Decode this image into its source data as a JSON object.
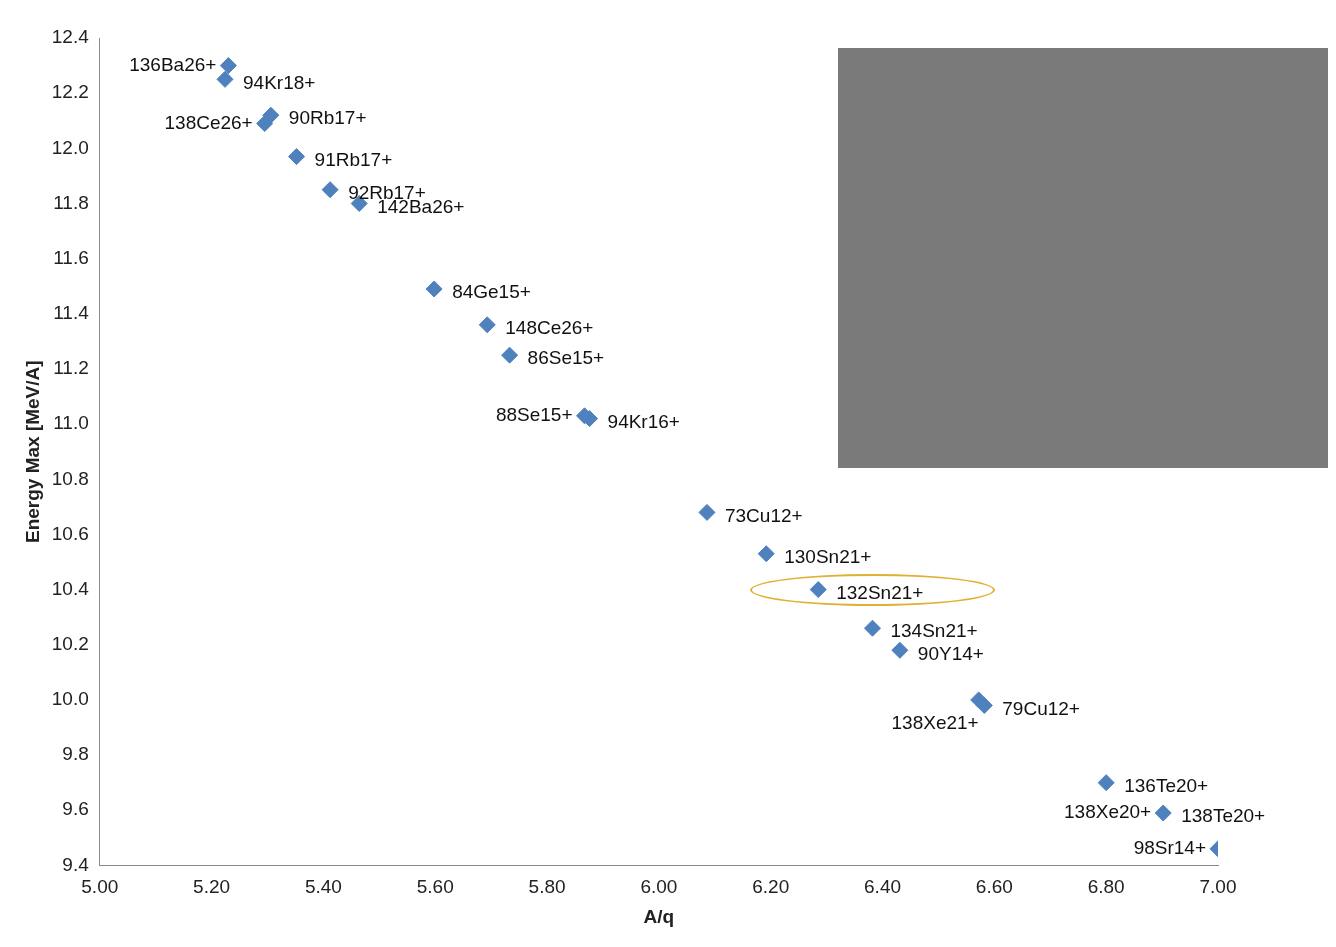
{
  "chart_data": {
    "type": "scatter",
    "xlabel": "A/q",
    "ylabel": "Energy Max [MeV/A]",
    "x": [
      5.23,
      5.224,
      5.295,
      5.306,
      5.352,
      5.412,
      5.464,
      5.598,
      5.693,
      5.733,
      5.867,
      5.876,
      6.086,
      6.192,
      6.285,
      6.382,
      6.431,
      6.572,
      6.582,
      6.8,
      6.902,
      7.0
    ],
    "values": [
      12.3,
      12.25,
      12.09,
      12.12,
      11.97,
      11.85,
      11.8,
      11.49,
      11.36,
      11.25,
      11.03,
      11.02,
      10.68,
      10.53,
      10.4,
      10.26,
      10.18,
      10.0,
      9.98,
      9.7,
      9.59,
      9.46
    ],
    "color": "#4f81bd",
    "marker": "diamond",
    "grid": false,
    "xlim": [
      5.0,
      7.0
    ],
    "xticks": [
      {
        "value": 5.0,
        "label": "5.00"
      },
      {
        "value": 5.2,
        "label": "5.20"
      },
      {
        "value": 5.4,
        "label": "5.40"
      },
      {
        "value": 5.6,
        "label": "5.60"
      },
      {
        "value": 5.8,
        "label": "5.80"
      },
      {
        "value": 6.0,
        "label": "6.00"
      },
      {
        "value": 6.2,
        "label": "6.20"
      },
      {
        "value": 6.4,
        "label": "6.40"
      },
      {
        "value": 6.6,
        "label": "6.60"
      },
      {
        "value": 6.8,
        "label": "6.80"
      },
      {
        "value": 7.0,
        "label": "7.00"
      }
    ],
    "ylim": [
      9.4,
      12.4
    ],
    "yticks": [
      {
        "value": 9.4,
        "label": "9.4"
      },
      {
        "value": 9.6,
        "label": "9.6"
      },
      {
        "value": 9.8,
        "label": "9.8"
      },
      {
        "value": 10.0,
        "label": "10.0"
      },
      {
        "value": 10.2,
        "label": "10.2"
      },
      {
        "value": 10.4,
        "label": "10.4"
      },
      {
        "value": 10.6,
        "label": "10.6"
      },
      {
        "value": 10.8,
        "label": "10.8"
      },
      {
        "value": 11.0,
        "label": "11.0"
      },
      {
        "value": 11.2,
        "label": "11.2"
      },
      {
        "value": 11.4,
        "label": "11.4"
      },
      {
        "value": 11.6,
        "label": "11.6"
      },
      {
        "value": 11.8,
        "label": "11.8"
      },
      {
        "value": 12.0,
        "label": "12.0"
      },
      {
        "value": 12.2,
        "label": "12.2"
      },
      {
        "value": 12.4,
        "label": "12.4"
      }
    ],
    "annotations": [
      {
        "text": "136Ba26+",
        "x": 5.23,
        "y": 12.3
      },
      {
        "text": "94Kr18+",
        "x": 5.224,
        "y": 12.25
      },
      {
        "text": "138Ce26+",
        "x": 5.295,
        "y": 12.09
      },
      {
        "text": "90Rb17+",
        "x": 5.306,
        "y": 12.12
      },
      {
        "text": "91Rb17+",
        "x": 5.352,
        "y": 11.97
      },
      {
        "text": "92Rb17+",
        "x": 5.412,
        "y": 11.85
      },
      {
        "text": "142Ba26+",
        "x": 5.464,
        "y": 11.8
      },
      {
        "text": "84Ge15+",
        "x": 5.598,
        "y": 11.49
      },
      {
        "text": "148Ce26+",
        "x": 5.693,
        "y": 11.36
      },
      {
        "text": "86Se15+",
        "x": 5.733,
        "y": 11.25
      },
      {
        "text": "88Se15+",
        "x": 5.867,
        "y": 11.03
      },
      {
        "text": "94Kr16+",
        "x": 5.876,
        "y": 11.02
      },
      {
        "text": "73Cu12+",
        "x": 6.086,
        "y": 10.68
      },
      {
        "text": "130Sn21+",
        "x": 6.192,
        "y": 10.53
      },
      {
        "text": "132Sn21+",
        "x": 6.285,
        "y": 10.4
      },
      {
        "text": "134Sn21+",
        "x": 6.382,
        "y": 10.26
      },
      {
        "text": "90Y14+",
        "x": 6.431,
        "y": 10.18
      },
      {
        "text": "138Xe21+",
        "x": 6.572,
        "y": 10.0
      },
      {
        "text": "79Cu12+",
        "x": 6.582,
        "y": 9.98
      },
      {
        "text": "136Te20+",
        "x": 6.8,
        "y": 9.7
      },
      {
        "text": "138Xe20+",
        "x": 6.902,
        "y": 9.59
      },
      {
        "text": "138Te20+",
        "x": 6.902,
        "y": 9.59
      },
      {
        "text": "98Sr14+",
        "x": 7.0,
        "y": 9.46
      }
    ]
  }
}
